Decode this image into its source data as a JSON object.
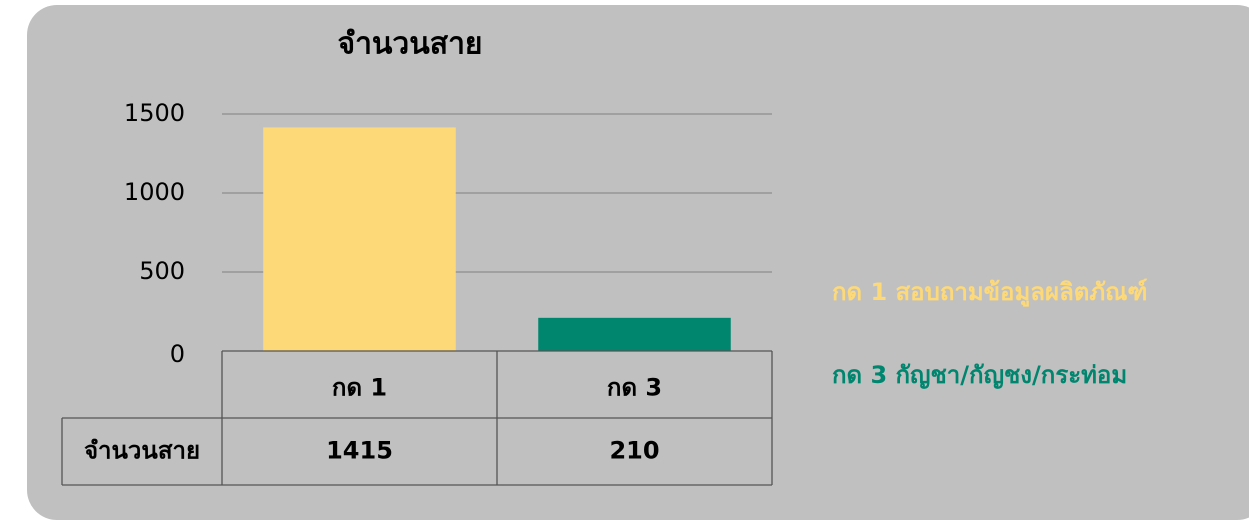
{
  "chart_data": {
    "type": "bar",
    "title": "จำนวนสาย",
    "categories": [
      "กด 1",
      "กด 3"
    ],
    "series": [
      {
        "name": "จำนวนสาย",
        "values": [
          1415,
          210
        ],
        "colors": [
          "#fdd978",
          "#00856f"
        ]
      }
    ],
    "legend_labels": [
      "กด 1 สอบถามข้อมูลผลิตภัณฑ์",
      "กด 3 กัญชา/กัญชง/กระท่อม"
    ],
    "ylim": [
      0,
      1500
    ],
    "yticks": [
      0,
      500,
      1000,
      1500
    ],
    "grid": true,
    "data_table": true
  }
}
